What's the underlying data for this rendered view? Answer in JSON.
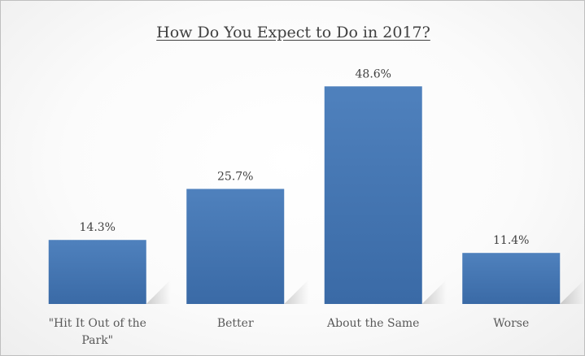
{
  "chart_data": {
    "type": "bar",
    "title": "How Do You Expect to Do in 2017?",
    "categories": [
      "\"Hit It Out of the Park\"",
      "Better",
      "About the Same",
      "Worse"
    ],
    "category_lines": [
      [
        "\"Hit It Out of the",
        "Park\""
      ],
      [
        "Better"
      ],
      [
        "About the Same"
      ],
      [
        "Worse"
      ]
    ],
    "values": [
      14.3,
      25.7,
      48.6,
      11.4
    ],
    "data_labels": [
      "14.3%",
      "25.7%",
      "48.6%",
      "11.4%"
    ],
    "unit": "%",
    "xlabel": "",
    "ylabel": "",
    "ylim": [
      0,
      55
    ],
    "grid": false,
    "legend": "none",
    "colors": {
      "bar_top": "#4f81bd",
      "bar_bottom": "#3a6aa6"
    }
  }
}
